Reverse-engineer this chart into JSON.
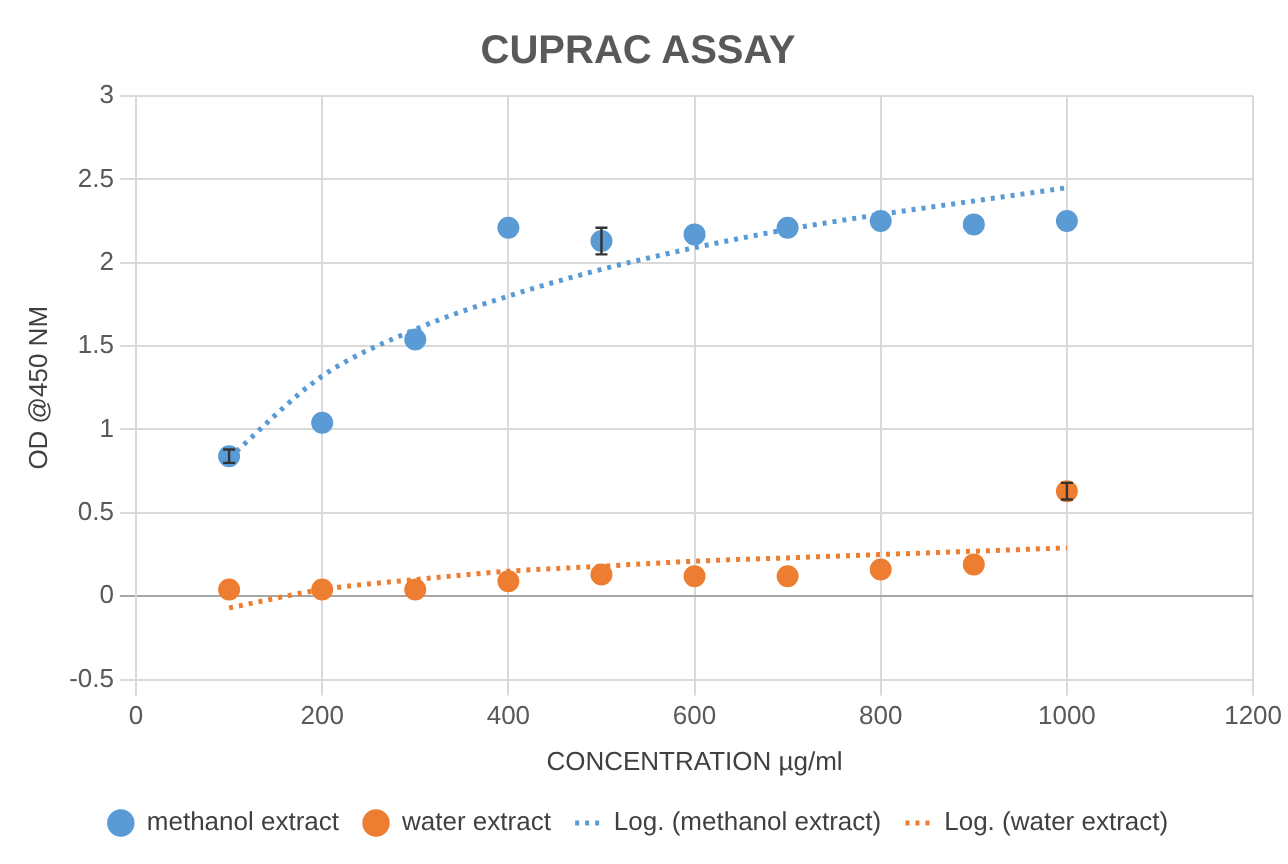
{
  "chart_data": {
    "type": "scatter",
    "title": "CUPRAC ASSAY",
    "xlabel": "CONCENTRATION µg/ml",
    "ylabel": "OD @450 NM",
    "xlim": [
      0,
      1200
    ],
    "xticks": [
      0,
      200,
      400,
      600,
      800,
      1000,
      1200
    ],
    "ylim": [
      -0.5,
      3
    ],
    "yticks": [
      -0.5,
      0,
      0.5,
      1,
      1.5,
      2,
      2.5,
      3
    ],
    "grid": true,
    "legend": "bottom",
    "marker": "circle",
    "series": [
      {
        "name": "methanol extract",
        "type": "scatter",
        "color": "#5b9bd5",
        "x": [
          100,
          200,
          300,
          400,
          500,
          600,
          700,
          800,
          900,
          1000
        ],
        "values": [
          0.84,
          1.04,
          1.54,
          2.21,
          2.13,
          2.17,
          2.21,
          2.25,
          2.23,
          2.25
        ],
        "errors": [
          0.04,
          null,
          null,
          null,
          0.08,
          null,
          null,
          null,
          null,
          null
        ]
      },
      {
        "name": "water extract",
        "type": "scatter",
        "color": "#ed7d31",
        "x": [
          100,
          200,
          300,
          400,
          500,
          600,
          700,
          800,
          900,
          1000
        ],
        "values": [
          0.04,
          0.04,
          0.04,
          0.09,
          0.13,
          0.12,
          0.12,
          0.16,
          0.19,
          0.63
        ],
        "errors": [
          null,
          null,
          null,
          null,
          null,
          null,
          null,
          null,
          null,
          0.05
        ]
      },
      {
        "name": "Log. (methanol extract)",
        "type": "line",
        "color": "#5b9bd5",
        "line_style": "dotted",
        "marker": "none",
        "x": [
          100,
          200,
          300,
          400,
          500,
          600,
          700,
          800,
          900,
          1000
        ],
        "values": [
          0.83,
          1.32,
          1.6,
          1.8,
          1.96,
          2.09,
          2.2,
          2.29,
          2.37,
          2.45
        ]
      },
      {
        "name": "Log. (water extract)",
        "type": "line",
        "color": "#ed7d31",
        "line_style": "dotted",
        "marker": "none",
        "x": [
          100,
          200,
          300,
          400,
          500,
          600,
          700,
          800,
          900,
          1000
        ],
        "values": [
          -0.07,
          0.04,
          0.1,
          0.15,
          0.18,
          0.21,
          0.23,
          0.25,
          0.27,
          0.29
        ]
      }
    ]
  }
}
